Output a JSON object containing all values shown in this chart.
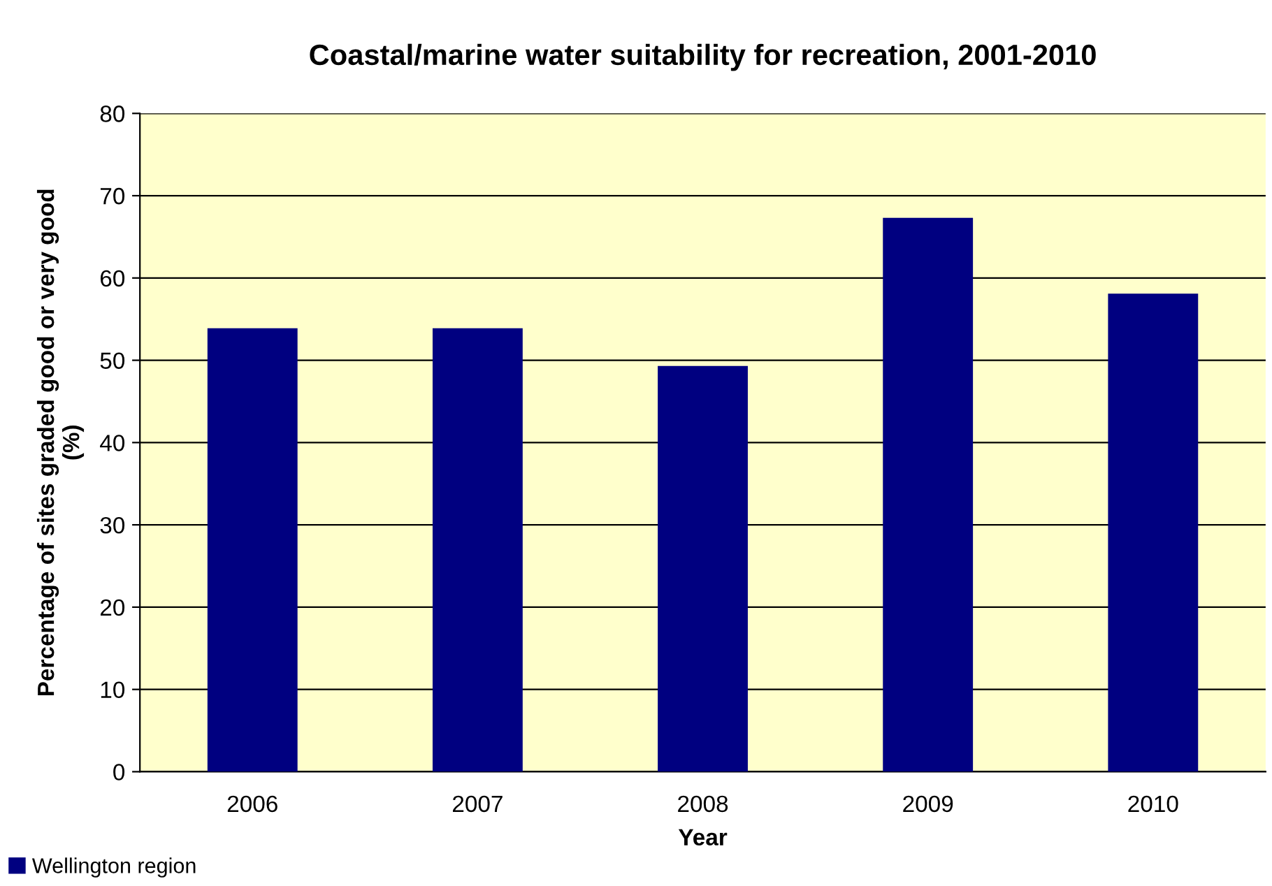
{
  "chart_data": {
    "type": "bar",
    "title": "Coastal/marine water suitability for recreation, 2001-2010",
    "xlabel": "Year",
    "ylabel": "Percentage of sites graded good or very good\n(%)",
    "categories": [
      "2006",
      "2007",
      "2008",
      "2009",
      "2010"
    ],
    "series": [
      {
        "name": "Wellington region",
        "color": "#000080",
        "values": [
          53.9,
          53.9,
          49.3,
          67.3,
          58.1
        ]
      }
    ],
    "ylim": [
      0,
      80
    ],
    "yticks": [
      0,
      10,
      20,
      30,
      40,
      50,
      60,
      70,
      80
    ],
    "grid": "y",
    "legend": "bottom left"
  }
}
